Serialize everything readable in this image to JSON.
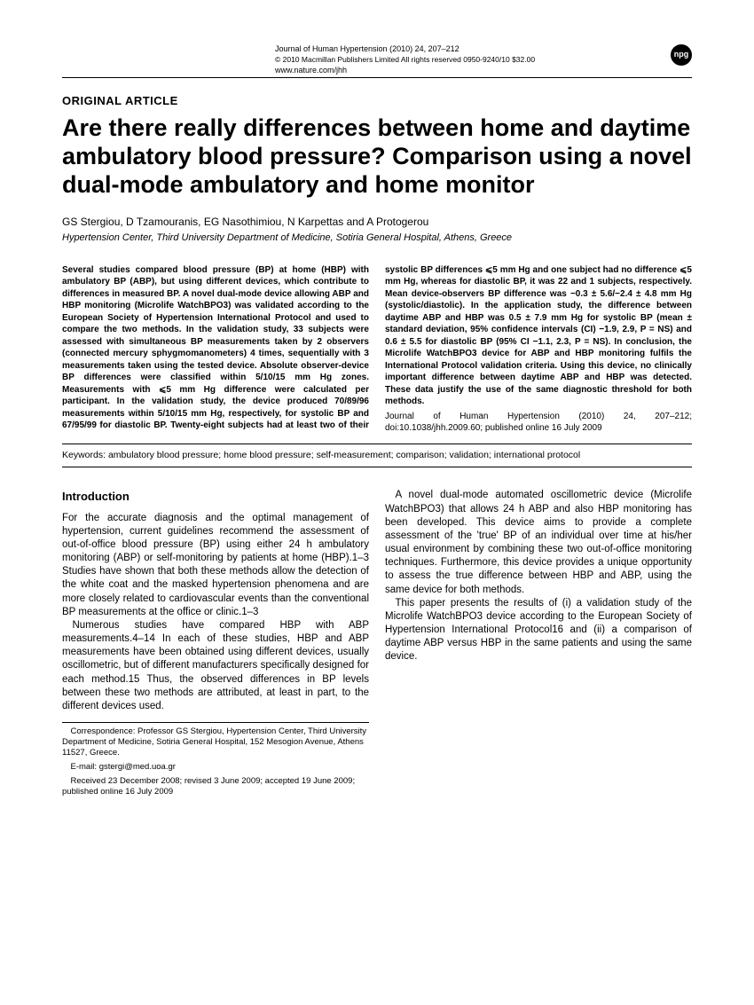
{
  "meta": {
    "journal_line": "Journal of Human Hypertension (2010) 24, 207–212",
    "copyright_line": "© 2010 Macmillan Publishers Limited   All rights reserved 0950-9240/10 $32.00",
    "url": "www.nature.com/jhh",
    "badge": "npg"
  },
  "article_type": "ORIGINAL ARTICLE",
  "title": "Are there really differences between home and daytime ambulatory blood pressure? Comparison using a novel dual-mode ambulatory and home monitor",
  "authors": "GS Stergiou, D Tzamouranis, EG Nasothimiou, N Karpettas and A Protogerou",
  "affiliation": "Hypertension Center, Third University Department of Medicine, Sotiria General Hospital, Athens, Greece",
  "abstract": "Several studies compared blood pressure (BP) at home (HBP) with ambulatory BP (ABP), but using different devices, which contribute to differences in measured BP. A novel dual-mode device allowing ABP and HBP monitoring (Microlife WatchBPO3) was validated according to the European Society of Hypertension International Protocol and used to compare the two methods. In the validation study, 33 subjects were assessed with simultaneous BP measurements taken by 2 observers (connected mercury sphygmomanometers) 4 times, sequentially with 3 measurements taken using the tested device. Absolute observer-device BP differences were classified within 5/10/15 mm Hg zones. Measurements with ⩽5 mm Hg difference were calculated per participant. In the validation study, the device produced 70/89/96 measurements within 5/10/15 mm Hg, respectively, for systolic BP and 67/95/99 for diastolic BP. Twenty-eight subjects had at least two of their systolic BP differences ⩽5 mm Hg and one subject had no difference ⩽5 mm Hg, whereas for diastolic BP, it was 22 and 1 subjects, respectively. Mean device-observers BP difference was −0.3 ± 5.6/−2.4 ± 4.8 mm Hg (systolic/diastolic). In the application study, the difference between daytime ABP and HBP was 0.5 ± 7.9 mm Hg for systolic BP (mean ± standard deviation, 95% confidence intervals (CI) −1.9, 2.9, P = NS) and 0.6 ± 5.5 for diastolic BP (95% CI −1.1, 2.3, P = NS). In conclusion, the Microlife WatchBPO3 device for ABP and HBP monitoring fulfils the International Protocol validation criteria. Using this device, no clinically important difference between daytime ABP and HBP was detected. These data justify the use of the same diagnostic threshold for both methods.",
  "journal_citation": "Journal of Human Hypertension (2010) 24, 207–212; doi:10.1038/jhh.2009.60; published online 16 July 2009",
  "keywords_label": "Keywords:",
  "keywords": "ambulatory blood pressure; home blood pressure; self-measurement; comparison; validation; international protocol",
  "intro_heading": "Introduction",
  "intro_p1": "For the accurate diagnosis and the optimal management of hypertension, current guidelines recommend the assessment of out-of-office blood pressure (BP) using either 24 h ambulatory monitoring (ABP) or self-monitoring by patients at home (HBP).1–3 Studies have shown that both these methods allow the detection of the white coat and the masked hypertension phenomena and are more closely related to cardiovascular events than the conventional BP measurements at the office or clinic.1–3",
  "intro_p2": "Numerous studies have compared HBP with ABP measurements.4–14 In each of these studies, HBP and ABP measurements have been obtained using different devices, usually oscillometric, but of different manufacturers specifically designed for each method.15 Thus, the observed differences in BP levels between these two methods are attributed, at least in part, to the different devices used.",
  "intro_p3": "A novel dual-mode automated oscillometric device (Microlife WatchBPO3) that allows 24 h ABP and also HBP monitoring has been developed. This device aims to provide a complete assessment of the 'true' BP of an individual over time at his/her usual environment by combining these two out-of-office monitoring techniques. Furthermore, this device provides a unique opportunity to assess the true difference between HBP and ABP, using the same device for both methods.",
  "intro_p4": "This paper presents the results of (i) a validation study of the Microlife WatchBPO3 device according to the European Society of Hypertension International Protocol16 and (ii) a comparison of daytime ABP versus HBP in the same patients and using the same device.",
  "correspondence": "Correspondence: Professor GS Stergiou, Hypertension Center, Third University Department of Medicine, Sotiria General Hospital, 152 Mesogion Avenue, Athens 11527, Greece.",
  "email": "E-mail: gstergi@med.uoa.gr",
  "received": "Received 23 December 2008; revised 3 June 2009; accepted 19 June 2009; published online 16 July 2009"
}
